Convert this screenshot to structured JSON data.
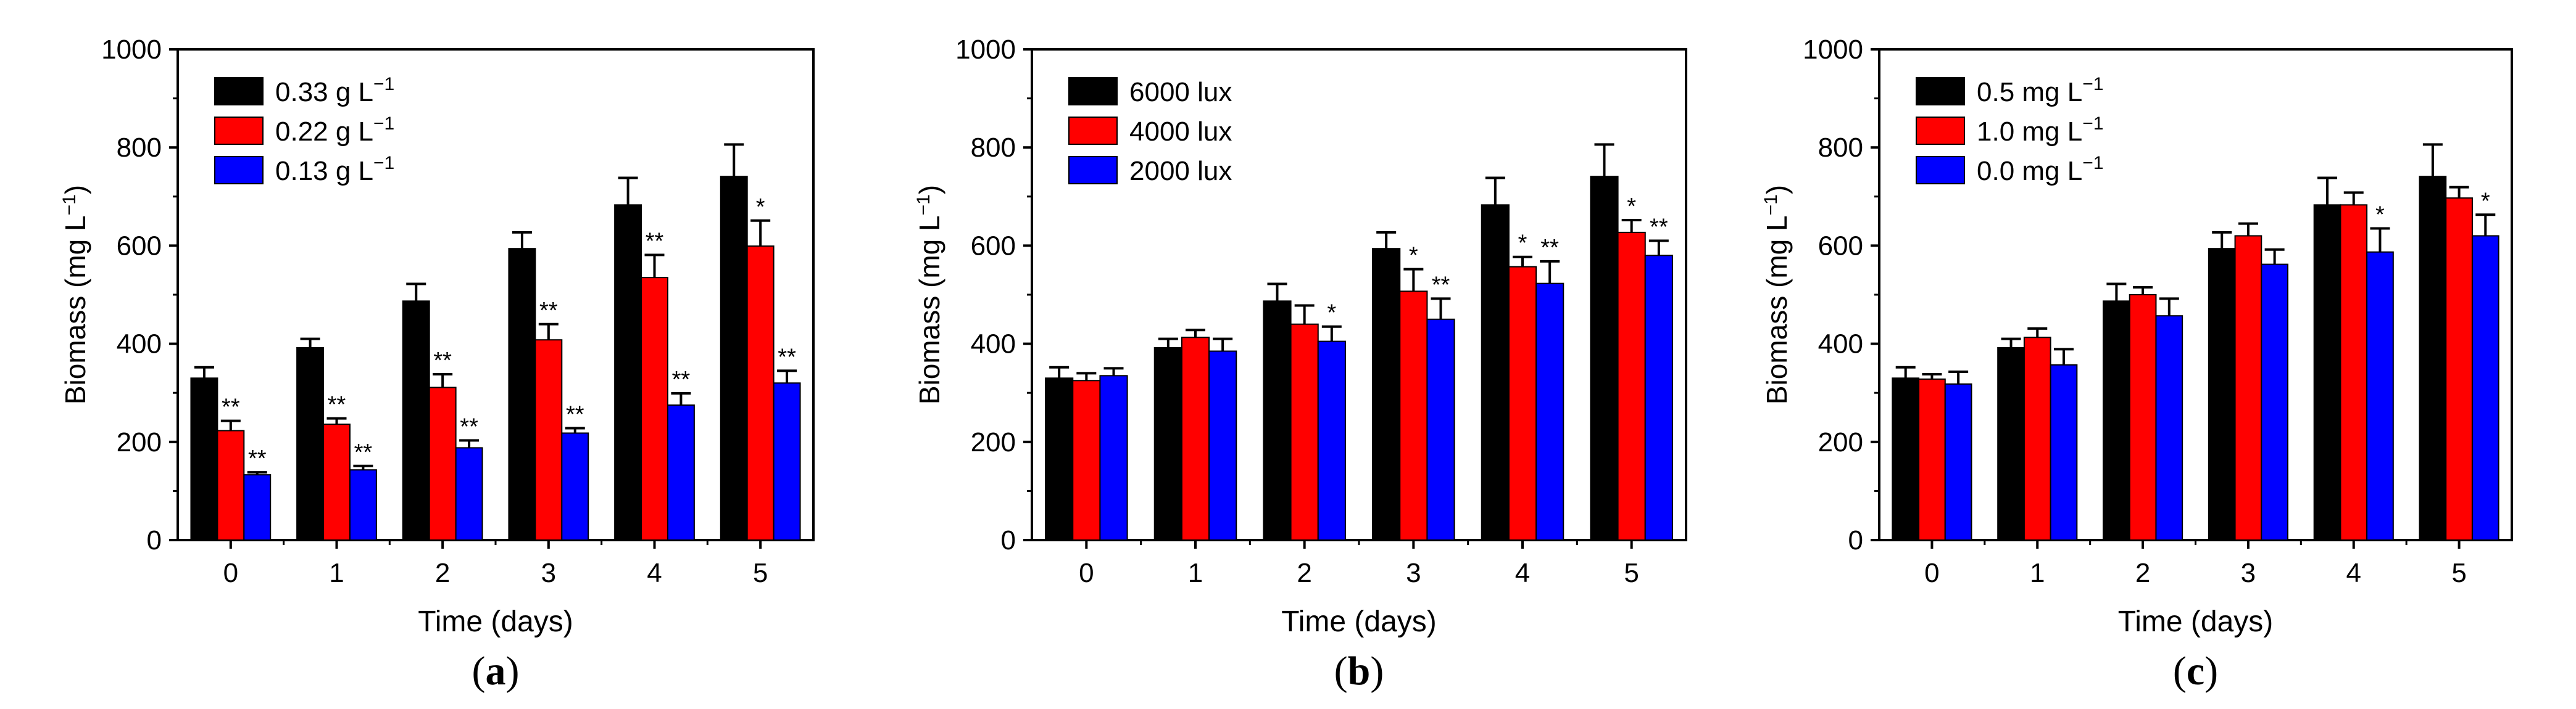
{
  "figure": {
    "captions": [
      "a",
      "b",
      "c"
    ]
  },
  "colors": {
    "series": [
      "#000000",
      "#ff0000",
      "#0000ff"
    ],
    "axis": "#000000",
    "background": "#ffffff"
  },
  "chart_data": [
    {
      "type": "bar",
      "title": "",
      "caption": "a",
      "xlabel": "Time (days)",
      "ylabel": "Biomass (mg L",
      "ylabel_superscript": "−1",
      "ylabel_close": ")",
      "ylim": [
        0,
        1000
      ],
      "yticks": [
        0,
        200,
        400,
        600,
        800,
        1000
      ],
      "categories": [
        "0",
        "1",
        "2",
        "3",
        "4",
        "5"
      ],
      "legend_position": "top-left",
      "series": [
        {
          "name": "0.33 g L",
          "unit_superscript": "−1",
          "values": [
            330,
            392,
            487,
            594,
            683,
            741
          ],
          "errors": [
            22,
            18,
            35,
            33,
            55,
            65
          ],
          "marks": [
            "",
            "",
            "",
            "",
            "",
            ""
          ]
        },
        {
          "name": "0.22 g L",
          "unit_superscript": "−1",
          "values": [
            223,
            236,
            311,
            408,
            535,
            599
          ],
          "errors": [
            20,
            12,
            27,
            32,
            46,
            52
          ],
          "marks": [
            "**",
            "**",
            "**",
            "**",
            "**",
            "*"
          ]
        },
        {
          "name": "0.13 g L",
          "unit_superscript": "−1",
          "values": [
            133,
            143,
            188,
            218,
            275,
            320
          ],
          "errors": [
            5,
            8,
            15,
            10,
            24,
            25
          ],
          "marks": [
            "**",
            "**",
            "**",
            "**",
            "**",
            "**"
          ]
        }
      ]
    },
    {
      "type": "bar",
      "title": "",
      "caption": "b",
      "xlabel": "Time (days)",
      "ylabel": "Biomass (mg L",
      "ylabel_superscript": "−1",
      "ylabel_close": ")",
      "ylim": [
        0,
        1000
      ],
      "yticks": [
        0,
        200,
        400,
        600,
        800,
        1000
      ],
      "categories": [
        "0",
        "1",
        "2",
        "3",
        "4",
        "5"
      ],
      "legend_position": "top-left",
      "series": [
        {
          "name": "6000 lux",
          "unit_superscript": "",
          "values": [
            330,
            392,
            487,
            594,
            683,
            741
          ],
          "errors": [
            22,
            18,
            35,
            33,
            55,
            65
          ],
          "marks": [
            "",
            "",
            "",
            "",
            "",
            ""
          ]
        },
        {
          "name": "4000 lux",
          "unit_superscript": "",
          "values": [
            325,
            413,
            440,
            507,
            557,
            627
          ],
          "errors": [
            15,
            15,
            38,
            45,
            20,
            25
          ],
          "marks": [
            "",
            "",
            "",
            "*",
            "*",
            "*"
          ]
        },
        {
          "name": "2000 lux",
          "unit_superscript": "",
          "values": [
            335,
            385,
            405,
            450,
            523,
            580
          ],
          "errors": [
            15,
            25,
            30,
            42,
            45,
            30
          ],
          "marks": [
            "",
            "",
            "*",
            "**",
            "**",
            "**"
          ]
        }
      ]
    },
    {
      "type": "bar",
      "title": "",
      "caption": "c",
      "xlabel": "Time (days)",
      "ylabel": "Biomass (mg L",
      "ylabel_superscript": "−1",
      "ylabel_close": ")",
      "ylim": [
        0,
        1000
      ],
      "yticks": [
        0,
        200,
        400,
        600,
        800,
        1000
      ],
      "categories": [
        "0",
        "1",
        "2",
        "3",
        "4",
        "5"
      ],
      "legend_position": "top-left",
      "series": [
        {
          "name": "0.5 mg L",
          "unit_superscript": "−1",
          "values": [
            330,
            392,
            487,
            594,
            683,
            741
          ],
          "errors": [
            22,
            18,
            35,
            33,
            55,
            65
          ],
          "marks": [
            "",
            "",
            "",
            "",
            "",
            ""
          ]
        },
        {
          "name": "1.0 mg L",
          "unit_superscript": "−1",
          "values": [
            328,
            413,
            500,
            620,
            683,
            697
          ],
          "errors": [
            10,
            18,
            15,
            25,
            25,
            22
          ],
          "marks": [
            "",
            "",
            "",
            "",
            "",
            ""
          ]
        },
        {
          "name": "0.0 mg L",
          "unit_superscript": "−1",
          "values": [
            318,
            357,
            457,
            562,
            587,
            620
          ],
          "errors": [
            25,
            32,
            35,
            30,
            48,
            43
          ],
          "marks": [
            "",
            "",
            "",
            "",
            "*",
            "*"
          ]
        }
      ]
    }
  ]
}
